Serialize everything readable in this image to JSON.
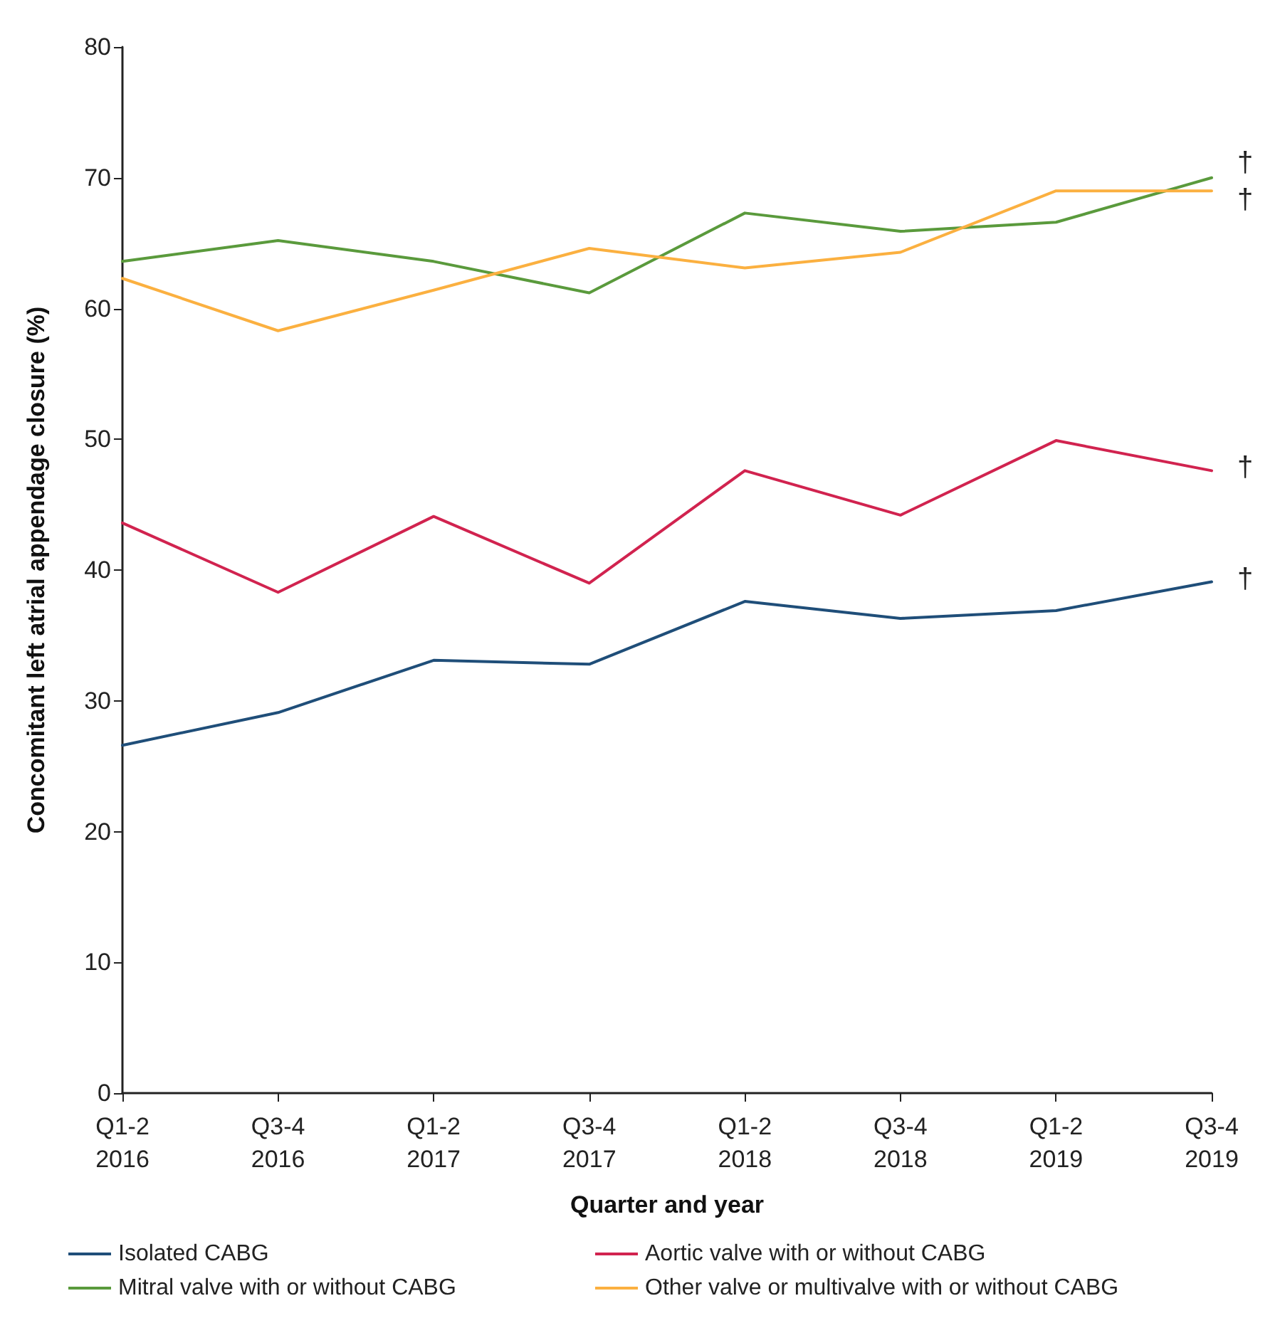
{
  "chart_data": {
    "type": "line",
    "xlabel": "Quarter and year",
    "ylabel": "Concomitant left atrial appendage closure (%)",
    "categories": [
      "Q1-2\n2016",
      "Q3-4\n2016",
      "Q1-2\n2017",
      "Q3-4\n2017",
      "Q1-2\n2018",
      "Q3-4\n2018",
      "Q1-2\n2019",
      "Q3-4\n2019"
    ],
    "series": [
      {
        "name": "Isolated CABG",
        "color": "#1f4e79",
        "values": [
          26.6,
          29.1,
          33.1,
          32.8,
          37.6,
          36.3,
          36.9,
          39.1
        ]
      },
      {
        "name": "Aortic valve with or without CABG",
        "color": "#d1234f",
        "values": [
          43.6,
          38.3,
          44.1,
          39.0,
          47.6,
          44.2,
          49.9,
          47.6
        ]
      },
      {
        "name": "Mitral valve with or without CABG",
        "color": "#5a9a3c",
        "values": [
          63.6,
          65.2,
          63.6,
          61.2,
          67.3,
          65.9,
          66.6,
          70.0
        ]
      },
      {
        "name": "Other valve or multivalve with or without CABG",
        "color": "#fbb040",
        "values": [
          62.3,
          58.3,
          61.4,
          64.6,
          63.1,
          64.3,
          69.0,
          69.0
        ]
      }
    ],
    "ylim": [
      0,
      80
    ],
    "yticks": [
      0,
      10,
      20,
      30,
      40,
      50,
      60,
      70,
      80
    ],
    "grid": false,
    "legend": "bottom",
    "marker": "none",
    "line_style": "solid",
    "annotations": [
      {
        "text": "†",
        "x": "Q3-4\n2019",
        "y": 70.0
      },
      {
        "text": "†",
        "x": "Q3-4\n2019",
        "y": 69.0
      },
      {
        "text": "†",
        "x": "Q3-4\n2019",
        "y": 47.6
      },
      {
        "text": "†",
        "x": "Q3-4\n2019",
        "y": 39.1
      }
    ]
  }
}
